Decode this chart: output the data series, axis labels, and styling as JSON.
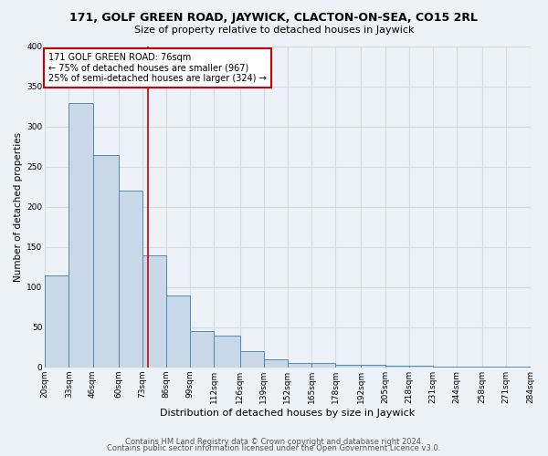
{
  "title1": "171, GOLF GREEN ROAD, JAYWICK, CLACTON-ON-SEA, CO15 2RL",
  "title2": "Size of property relative to detached houses in Jaywick",
  "xlabel": "Distribution of detached houses by size in Jaywick",
  "ylabel": "Number of detached properties",
  "bin_labels": [
    "20sqm",
    "33sqm",
    "46sqm",
    "60sqm",
    "73sqm",
    "86sqm",
    "99sqm",
    "112sqm",
    "126sqm",
    "139sqm",
    "152sqm",
    "165sqm",
    "178sqm",
    "192sqm",
    "205sqm",
    "218sqm",
    "231sqm",
    "244sqm",
    "258sqm",
    "271sqm",
    "284sqm"
  ],
  "bin_edges": [
    20,
    33,
    46,
    60,
    73,
    86,
    99,
    112,
    126,
    139,
    152,
    165,
    178,
    192,
    205,
    218,
    231,
    244,
    258,
    271,
    284
  ],
  "bar_heights": [
    115,
    330,
    265,
    220,
    140,
    90,
    45,
    40,
    20,
    10,
    5,
    5,
    3,
    3,
    2,
    2,
    1,
    1,
    1,
    1
  ],
  "bar_color": "#c8d8e8",
  "bar_edge_color": "#5588aa",
  "vline_x": 76,
  "vline_color": "#cc0000",
  "annotation_line1": "171 GOLF GREEN ROAD: 76sqm",
  "annotation_line2": "← 75% of detached houses are smaller (967)",
  "annotation_line3": "25% of semi-detached houses are larger (324) →",
  "annotation_box_color": "#ffffff",
  "annotation_box_edge": "#cc0000",
  "ylim": [
    0,
    400
  ],
  "yticks": [
    0,
    50,
    100,
    150,
    200,
    250,
    300,
    350,
    400
  ],
  "footer1": "Contains HM Land Registry data © Crown copyright and database right 2024.",
  "footer2": "Contains public sector information licensed under the Open Government Licence v3.0.",
  "bg_color": "#edf2f8",
  "grid_color": "#d0dce8",
  "title1_fontsize": 9,
  "title2_fontsize": 8,
  "ylabel_fontsize": 7.5,
  "xlabel_fontsize": 8,
  "tick_fontsize": 6.5,
  "footer_fontsize": 6
}
